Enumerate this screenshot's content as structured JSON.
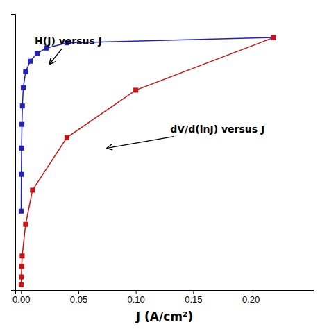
{
  "chart_data": {
    "type": "line",
    "xlabel": "J (A/cm²)",
    "series": [
      {
        "x": [
          0.0001,
          0.0003,
          0.0005,
          0.0008,
          0.0012,
          0.002,
          0.004,
          0.008,
          0.014,
          0.022,
          0.04,
          0.22
        ],
        "values": [
          0.3,
          0.44,
          0.54,
          0.63,
          0.7,
          0.77,
          0.83,
          0.87,
          0.9,
          0.92,
          0.94,
          0.96
        ],
        "color": "#2222bb",
        "marker": "square"
      },
      {
        "x": [
          0.0001,
          0.0003,
          0.0006,
          0.001,
          0.004,
          0.01,
          0.04,
          0.1,
          0.22
        ],
        "values": [
          0.02,
          0.05,
          0.09,
          0.13,
          0.25,
          0.38,
          0.58,
          0.76,
          0.96
        ],
        "color": "#cc1111",
        "marker": "square"
      }
    ],
    "xlim": [
      -0.005,
      0.255
    ],
    "ylim": [
      0.0,
      1.05
    ],
    "xticks": [
      {
        "value": 0.0,
        "label": "0.00"
      },
      {
        "value": 0.05,
        "label": "0.05"
      },
      {
        "value": 0.1,
        "label": "0.10"
      },
      {
        "value": 0.15,
        "label": "0.15"
      },
      {
        "value": 0.2,
        "label": "0.20"
      }
    ],
    "yticks": [],
    "tick_labels": "x",
    "annotations": [
      {
        "text": "H(J) versus J",
        "xy": [
          0.025,
          0.86
        ],
        "xytext": [
          0.012,
          0.935
        ]
      },
      {
        "text": "dV/d(lnJ) versus J",
        "xy": [
          0.075,
          0.54
        ],
        "xytext": [
          0.13,
          0.6
        ]
      }
    ]
  }
}
